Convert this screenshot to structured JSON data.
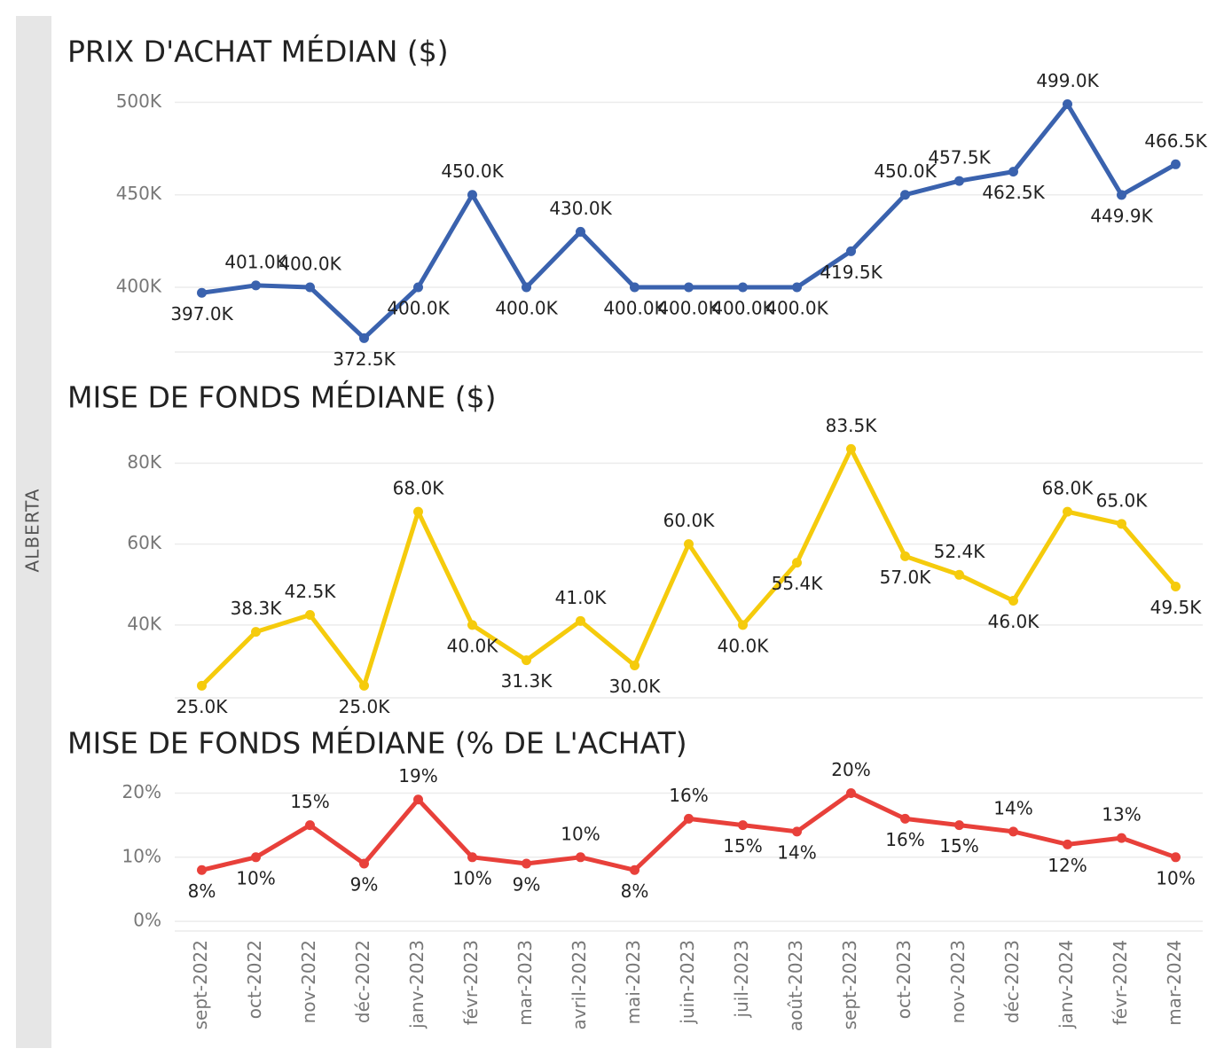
{
  "panel_label": "ALBERTA",
  "chart_data": [
    {
      "type": "line",
      "title": "PRIX D'ACHAT MÉDIAN ($)",
      "color": "#3a62ae",
      "values": [
        397000,
        401000,
        400000,
        372500,
        400000,
        450000,
        400000,
        430000,
        400000,
        400000,
        400000,
        400000,
        419500,
        450000,
        457500,
        462500,
        499000,
        449900,
        466500
      ],
      "value_labels": [
        "397.0K",
        "401.0K",
        "400.0K",
        "372.5K",
        "400.0K",
        "450.0K",
        "400.0K",
        "430.0K",
        "400.0K",
        "400.0K",
        "400.0K",
        "400.0K",
        "419.5K",
        "450.0K",
        "457.5K",
        "462.5K",
        "499.0K",
        "449.9K",
        "466.5K"
      ],
      "ylim": [
        365000,
        505000
      ],
      "yticks": [
        {
          "value": 400000,
          "label": "400K"
        },
        {
          "value": 450000,
          "label": "450K"
        },
        {
          "value": 500000,
          "label": "500K"
        }
      ],
      "grid": true
    },
    {
      "type": "line",
      "title": "MISE DE FONDS MÉDIANE ($)",
      "color": "#f5cb0c",
      "values": [
        25000,
        38300,
        42500,
        25000,
        68000,
        40000,
        31300,
        41000,
        30000,
        60000,
        40000,
        55400,
        83500,
        57000,
        52400,
        46000,
        68000,
        65000,
        49500
      ],
      "value_labels": [
        "25.0K",
        "38.3K",
        "42.5K",
        "25.0K",
        "68.0K",
        "40.0K",
        "31.3K",
        "41.0K",
        "30.0K",
        "60.0K",
        "40.0K",
        "55.4K",
        "83.5K",
        "57.0K",
        "52.4K",
        "46.0K",
        "68.0K",
        "65.0K",
        "49.5K"
      ],
      "ylim": [
        22000,
        86000
      ],
      "yticks": [
        {
          "value": 40000,
          "label": "40K"
        },
        {
          "value": 60000,
          "label": "60K"
        },
        {
          "value": 80000,
          "label": "80K"
        }
      ],
      "grid": true
    },
    {
      "type": "line",
      "title": "MISE DE FONDS MÉDIANE (% DE L'ACHAT)",
      "color": "#e8403a",
      "categories": [
        "sept-2022",
        "oct-2022",
        "nov-2022",
        "déc-2022",
        "janv-2023",
        "févr-2023",
        "mar-2023",
        "avril-2023",
        "mai-2023",
        "juin-2023",
        "juil-2023",
        "août-2023",
        "sept-2023",
        "oct-2023",
        "nov-2023",
        "déc-2023",
        "janv-2024",
        "févr-2024",
        "mar-2024"
      ],
      "values": [
        8,
        10,
        15,
        9,
        19,
        10,
        9,
        10,
        8,
        16,
        15,
        14,
        20,
        16,
        15,
        14,
        12,
        13,
        10
      ],
      "value_labels": [
        "8%",
        "10%",
        "15%",
        "9%",
        "19%",
        "10%",
        "9%",
        "10%",
        "8%",
        "16%",
        "15%",
        "14%",
        "20%",
        "16%",
        "15%",
        "14%",
        "12%",
        "13%",
        "10%"
      ],
      "ylim": [
        -1.5,
        22
      ],
      "yticks": [
        {
          "value": 0,
          "label": "0%"
        },
        {
          "value": 10,
          "label": "10%"
        },
        {
          "value": 20,
          "label": "20%"
        }
      ],
      "grid": true
    }
  ]
}
